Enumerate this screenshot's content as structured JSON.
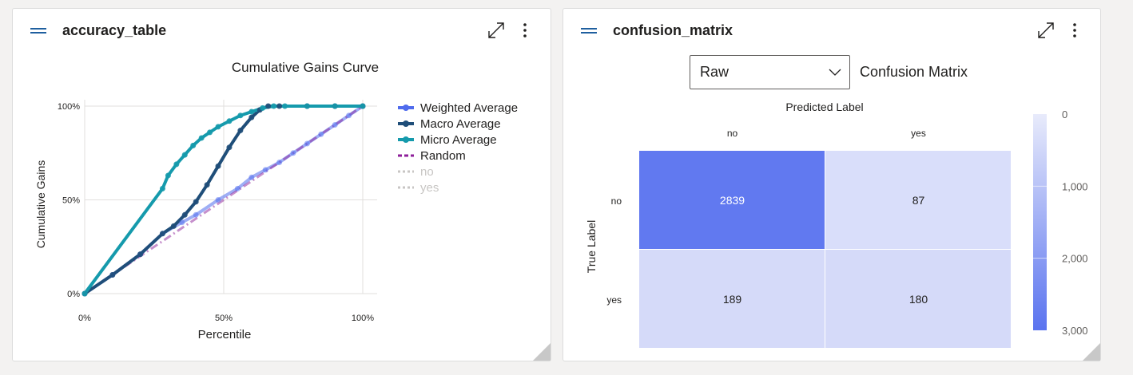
{
  "left_card": {
    "title": "accuracy_table",
    "chart": {
      "title": "Cumulative Gains Curve",
      "xlabel": "Percentile",
      "ylabel": "Cumulative Gains",
      "xticks": [
        "0%",
        "50%",
        "100%"
      ],
      "yticks": [
        "0%",
        "50%",
        "100%"
      ]
    }
  },
  "right_card": {
    "title": "confusion_matrix",
    "dropdown_value": "Raw",
    "title_label": "Confusion Matrix",
    "xaxis_title": "Predicted Label",
    "yaxis_title": "True Label",
    "x_categories": [
      "no",
      "yes"
    ],
    "y_categories": [
      "no",
      "yes"
    ],
    "colorbar_ticks": [
      "0",
      "1,000",
      "2,000",
      "3,000"
    ]
  },
  "colors": {
    "weighted": "#4f6bed",
    "macro": "#1f4e79",
    "micro": "#159aac",
    "random": "#8e1f9a",
    "no": "#c8c6c4",
    "yes": "#c8c6c4",
    "heat_high": "#5a73ef",
    "heat_low": "#dde1fa"
  },
  "chart_data": [
    {
      "type": "line",
      "title": "Cumulative Gains Curve",
      "xlabel": "Percentile",
      "ylabel": "Cumulative Gains",
      "xlim": [
        0,
        100
      ],
      "ylim": [
        0,
        100
      ],
      "legend_position": "right",
      "series": [
        {
          "name": "Weighted Average",
          "color_key": "weighted",
          "style": "solid",
          "x": [
            0,
            10,
            20,
            28,
            35,
            40,
            48,
            55,
            60,
            65,
            70,
            75,
            80,
            85,
            90,
            95,
            100
          ],
          "y": [
            0,
            10,
            21,
            32,
            38,
            42,
            50,
            56,
            62,
            66,
            70,
            75,
            80,
            85,
            90,
            95,
            100
          ]
        },
        {
          "name": "Macro Average",
          "color_key": "macro",
          "style": "solid",
          "x": [
            0,
            10,
            20,
            28,
            32,
            36,
            40,
            44,
            48,
            52,
            56,
            60,
            63,
            66,
            70,
            80,
            90,
            100
          ],
          "y": [
            0,
            10,
            21,
            32,
            36,
            42,
            49,
            58,
            68,
            78,
            87,
            94,
            98,
            100,
            100,
            100,
            100,
            100
          ]
        },
        {
          "name": "Micro Average",
          "color_key": "micro",
          "style": "solid",
          "x": [
            0,
            28,
            30,
            33,
            36,
            39,
            42,
            45,
            48,
            52,
            56,
            60,
            64,
            68,
            72,
            80,
            90,
            100
          ],
          "y": [
            0,
            56,
            63,
            69,
            74,
            79,
            83,
            86,
            89,
            92,
            95,
            97,
            99,
            100,
            100,
            100,
            100,
            100
          ]
        },
        {
          "name": "Random",
          "color_key": "random",
          "style": "dashdot",
          "x": [
            0,
            100
          ],
          "y": [
            0,
            100
          ]
        },
        {
          "name": "no",
          "color_key": "no",
          "style": "dotted",
          "hidden": true,
          "x": [],
          "y": []
        },
        {
          "name": "yes",
          "color_key": "yes",
          "style": "dotted",
          "hidden": true,
          "x": [],
          "y": []
        }
      ]
    },
    {
      "type": "heatmap",
      "title": "Confusion Matrix",
      "xlabel": "Predicted Label",
      "ylabel": "True Label",
      "x": [
        "no",
        "yes"
      ],
      "y": [
        "no",
        "yes"
      ],
      "values": [
        [
          2839,
          87
        ],
        [
          189,
          180
        ]
      ],
      "colorbar": {
        "min": 0,
        "max": 3000,
        "ticks": [
          0,
          1000,
          2000,
          3000
        ],
        "reversed": true
      }
    }
  ]
}
